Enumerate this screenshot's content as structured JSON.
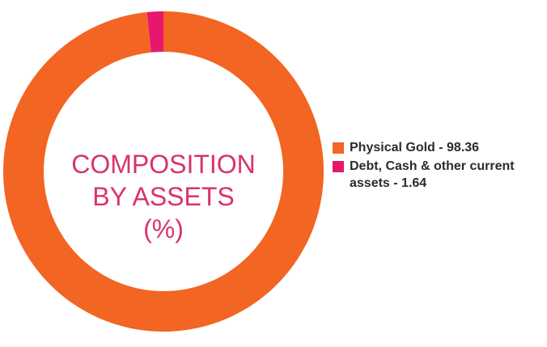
{
  "chart_data": {
    "type": "donut",
    "title": "COMPOSITION\nBY ASSETS\n(%)",
    "categories": [
      "Physical Gold - 98.36",
      "Debt, Cash & other current assets - 1.64"
    ],
    "values": [
      98.36,
      1.64
    ],
    "colors": [
      "#f26522",
      "#e8176e"
    ]
  }
}
